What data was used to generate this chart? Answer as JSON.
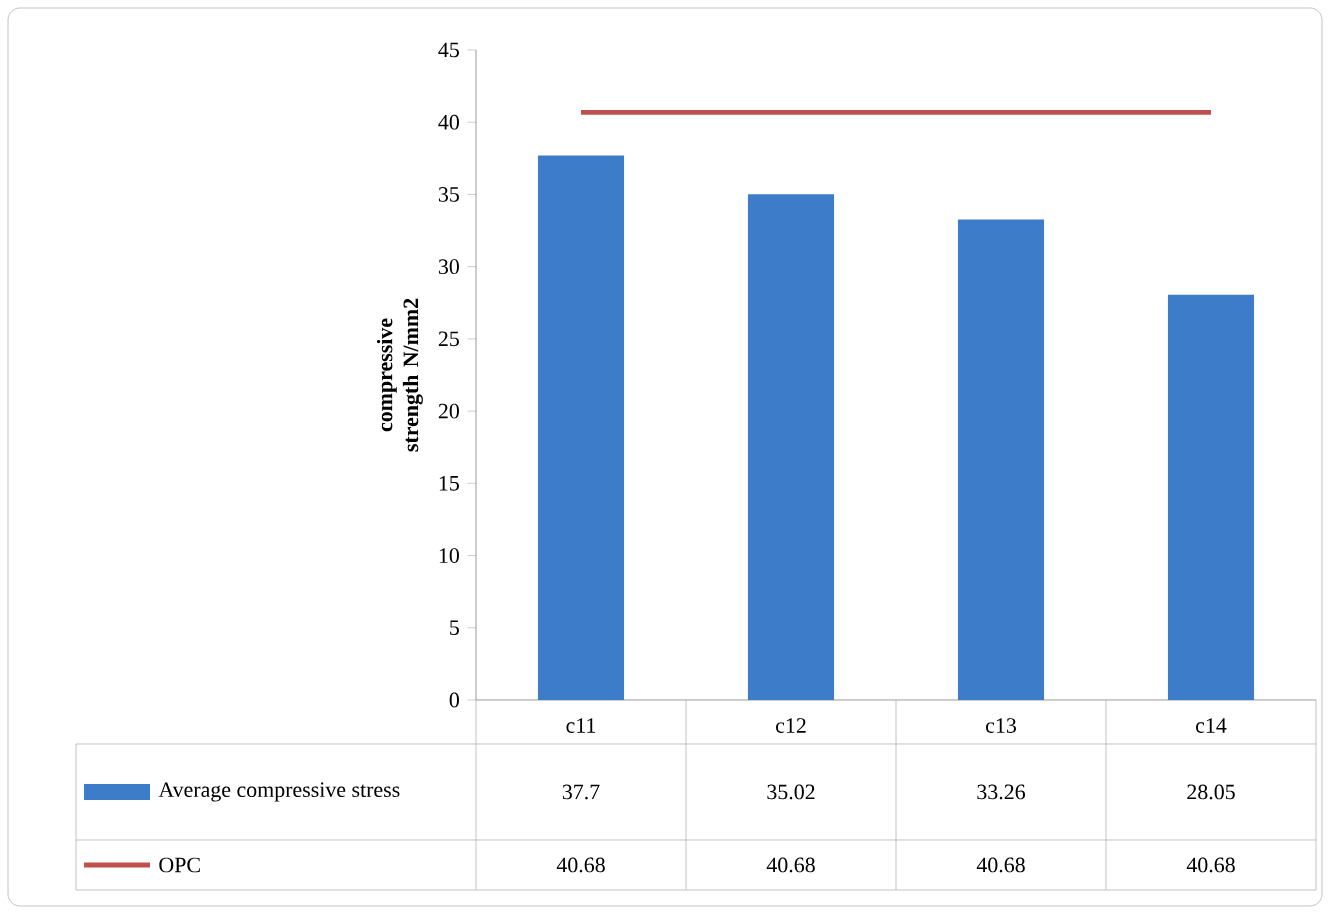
{
  "chart_data": {
    "type": "bar",
    "ylabel": "compressive strength N/mm2",
    "categories": [
      "c11",
      "c12",
      "c13",
      "c14"
    ],
    "series": [
      {
        "name": "Average compressive stress",
        "color": "#3d7cc9",
        "values": [
          37.7,
          35.02,
          33.26,
          28.05
        ]
      },
      {
        "name": "OPC",
        "type": "line",
        "color": "#c0504d",
        "values": [
          40.68,
          40.68,
          40.68,
          40.68
        ]
      }
    ],
    "ylim": [
      0,
      45
    ],
    "yticks": [
      0,
      5,
      10,
      15,
      20,
      25,
      30,
      35,
      40,
      45
    ],
    "data_labels": true,
    "legend": "bottom"
  }
}
